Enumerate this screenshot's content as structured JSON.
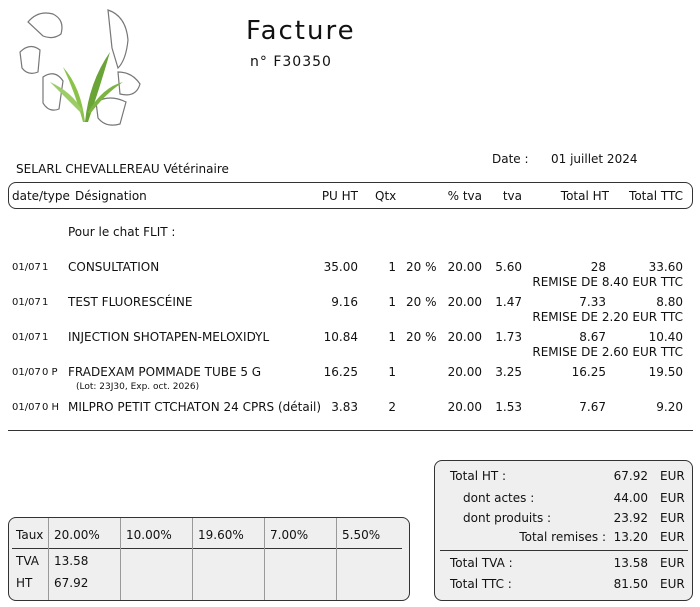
{
  "header": {
    "title": "Facture",
    "number": "n° F30350",
    "clinic": "SELARL CHEVALLEREAU Vétérinaire",
    "date_label": "Date :",
    "date": "01 juillet 2024"
  },
  "table": {
    "columns": [
      "date/type",
      "Désignation",
      "PU HT",
      "Qtx",
      "% tva",
      "tva",
      "Total HT",
      "Total TTC"
    ],
    "note": "Pour le chat FLIT :",
    "rows": [
      {
        "date": "01/07",
        "type": "1",
        "designation": "CONSULTATION",
        "pu_ht": "35.00",
        "qty": "1",
        "discount": "20 %",
        "tva_rate": "20.00",
        "tva": "5.60",
        "total_ht": "28",
        "total_ttc": "33.60",
        "remark": "REMISE DE 8.40 EUR TTC"
      },
      {
        "date": "01/07",
        "type": "1",
        "designation": "TEST FLUORESCÉINE",
        "pu_ht": "9.16",
        "qty": "1",
        "discount": "20 %",
        "tva_rate": "20.00",
        "tva": "1.47",
        "total_ht": "7.33",
        "total_ttc": "8.80",
        "remark": "REMISE DE 2.20 EUR TTC"
      },
      {
        "date": "01/07",
        "type": "1",
        "designation": "INJECTION SHOTAPEN-MELOXIDYL",
        "pu_ht": "10.84",
        "qty": "1",
        "discount": "20 %",
        "tva_rate": "20.00",
        "tva": "1.73",
        "total_ht": "8.67",
        "total_ttc": "10.40",
        "remark": "REMISE DE 2.60 EUR TTC"
      },
      {
        "date": "01/07",
        "type": "0 P",
        "designation": "FRADEXAM POMMADE TUBE 5 G",
        "lot": "(Lot: 23J30, Exp. oct. 2026)",
        "pu_ht": "16.25",
        "qty": "1",
        "tva_rate": "20.00",
        "tva": "3.25",
        "total_ht": "16.25",
        "total_ttc": "19.50"
      },
      {
        "date": "01/07",
        "type": "0 H",
        "designation": "MILPRO PETIT CTCHATON 24 CPRS (détail)",
        "pu_ht": "3.83",
        "qty": "2",
        "tva_rate": "20.00",
        "tva": "1.53",
        "total_ht": "7.67",
        "total_ttc": "9.20"
      }
    ]
  },
  "vat_summary": {
    "header": [
      "Taux",
      "20.00%",
      "10.00%",
      "19.60%",
      "7.00%",
      "5.50%"
    ],
    "rows": [
      [
        "TVA",
        "13.58"
      ],
      [
        "HT",
        "67.92"
      ]
    ]
  },
  "totals": [
    {
      "label": "Total HT :",
      "value": "67.92",
      "currency": "EUR"
    },
    {
      "label": "dont actes :",
      "value": "44.00",
      "currency": "EUR"
    },
    {
      "label": "dont produits :",
      "value": "23.92",
      "currency": "EUR"
    },
    {
      "label": "Total remises :",
      "value": "13.20",
      "currency": "EUR"
    },
    {
      "label": "Total TVA :",
      "value": "13.58",
      "currency": "EUR"
    },
    {
      "label": "Total TTC :",
      "value": "81.50",
      "currency": "EUR"
    }
  ]
}
